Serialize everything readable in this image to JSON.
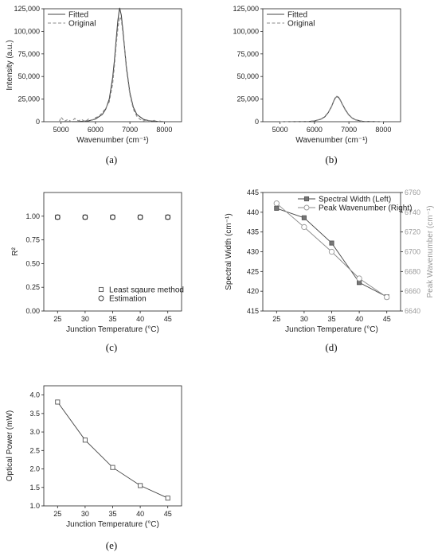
{
  "chart_data": [
    {
      "id": "a",
      "type": "line",
      "panel_label": "(a)",
      "xlabel": "Wavenumber (cm⁻¹)",
      "ylabel": "Intensity (a.u.)",
      "xlim": [
        4500,
        8500
      ],
      "ylim": [
        0,
        125000
      ],
      "xticks": [
        5000,
        6000,
        7000,
        8000
      ],
      "yticks": [
        0,
        25000,
        50000,
        75000,
        100000,
        125000
      ],
      "yticklabels": [
        "0",
        "25,000",
        "50,000",
        "75,000",
        "100,000",
        "125,000"
      ],
      "legend_position": "top-left",
      "series": [
        {
          "name": "Fitted",
          "style": "solid",
          "x": [
            5000,
            5500,
            5800,
            6000,
            6200,
            6300,
            6400,
            6500,
            6550,
            6600,
            6650,
            6700,
            6750,
            6800,
            6850,
            6900,
            7000,
            7100,
            7200,
            7400,
            7600,
            8000
          ],
          "y": [
            0,
            200,
            1000,
            3000,
            8000,
            14000,
            25000,
            49000,
            68000,
            90000,
            112000,
            126000,
            118000,
            100000,
            80000,
            60000,
            32000,
            16000,
            8000,
            2500,
            800,
            0
          ]
        },
        {
          "name": "Original",
          "style": "dashed",
          "x": [
            4950,
            5000,
            5100,
            5200,
            5300,
            5400,
            5500,
            5600,
            5700,
            5800,
            5900,
            6000,
            6100,
            6200,
            6300,
            6400,
            6500,
            6550,
            6600,
            6650,
            6700,
            6750,
            6800,
            6850,
            6900,
            7000,
            7100,
            7200,
            7300,
            7400,
            7500,
            7600,
            7700,
            7800,
            7900,
            8000
          ],
          "y": [
            0,
            5000,
            500,
            2500,
            0,
            3500,
            1000,
            2500,
            0,
            3000,
            1500,
            4500,
            6000,
            10000,
            15000,
            22000,
            42000,
            62000,
            84000,
            103000,
            116000,
            113000,
            96000,
            78000,
            57000,
            30000,
            14000,
            6000,
            2500,
            1000,
            2000,
            0,
            1500,
            0,
            1000,
            0
          ]
        }
      ]
    },
    {
      "id": "b",
      "type": "line",
      "panel_label": "(b)",
      "xlabel": "Wavenumber (cm⁻¹)",
      "ylabel": "",
      "xlim": [
        4500,
        8500
      ],
      "ylim": [
        0,
        125000
      ],
      "xticks": [
        5000,
        6000,
        7000,
        8000
      ],
      "yticks": [
        0,
        25000,
        50000,
        75000,
        100000,
        125000
      ],
      "yticklabels": [
        "0",
        "25,000",
        "50,000",
        "75,000",
        "100,000",
        "125,000"
      ],
      "legend_position": "top-left",
      "series": [
        {
          "name": "Fitted",
          "style": "solid",
          "x": [
            5000,
            5800,
            6000,
            6200,
            6300,
            6400,
            6500,
            6550,
            6600,
            6650,
            6700,
            6750,
            6800,
            6900,
            7000,
            7100,
            7200,
            7400,
            8000
          ],
          "y": [
            0,
            200,
            800,
            3000,
            5500,
            10000,
            17000,
            22000,
            26000,
            28000,
            27000,
            24000,
            20000,
            13000,
            7500,
            4000,
            2000,
            400,
            0
          ]
        },
        {
          "name": "Original",
          "style": "dashed",
          "x": [
            5000,
            5800,
            6000,
            6200,
            6300,
            6400,
            6500,
            6550,
            6600,
            6650,
            6700,
            6750,
            6800,
            6900,
            7000,
            7100,
            7200,
            7400,
            8000
          ],
          "y": [
            0,
            300,
            1000,
            3200,
            6000,
            10500,
            17500,
            22500,
            26500,
            27500,
            26500,
            23500,
            19500,
            12500,
            7000,
            3800,
            1800,
            400,
            0
          ]
        }
      ]
    },
    {
      "id": "c",
      "type": "scatter",
      "panel_label": "(c)",
      "xlabel": "Junction Temperature (°C)",
      "ylabel": "R²",
      "xlim": [
        22.5,
        47.5
      ],
      "ylim": [
        0,
        1.25
      ],
      "xticks": [
        25,
        30,
        35,
        40,
        45
      ],
      "yticks": [
        0,
        0.25,
        0.5,
        0.75,
        1.0
      ],
      "yticklabels": [
        "0.00",
        "0.25",
        "0.50",
        "0.75",
        "1.00"
      ],
      "legend_position": "bottom-right",
      "series": [
        {
          "name": "Least sqaure method",
          "marker": "square",
          "x": [
            25,
            30,
            35,
            40,
            45
          ],
          "y": [
            0.99,
            0.99,
            0.99,
            0.99,
            0.99
          ]
        },
        {
          "name": "Estimation",
          "marker": "circle",
          "x": [
            25,
            30,
            35,
            40,
            45
          ],
          "y": [
            0.99,
            0.99,
            0.99,
            0.99,
            0.99
          ]
        }
      ]
    },
    {
      "id": "d",
      "type": "line",
      "panel_label": "(d)",
      "xlabel": "Junction Temperature (°C)",
      "ylabel": "Spectral Width (cm⁻¹)",
      "ylabel_right": "Peak Wavenumber (cm⁻¹)",
      "xlim": [
        22.5,
        47.5
      ],
      "ylim": [
        415,
        445
      ],
      "ylim_right": [
        6640,
        6760
      ],
      "xticks": [
        25,
        30,
        35,
        40,
        45
      ],
      "yticks": [
        415,
        420,
        425,
        430,
        435,
        440,
        445
      ],
      "yticks_right": [
        6640,
        6660,
        6680,
        6700,
        6720,
        6740,
        6760
      ],
      "legend_position": "top-right",
      "series": [
        {
          "name": "Spectral Width (Left)",
          "marker": "square-filled",
          "axis": "left",
          "x": [
            25,
            30,
            35,
            40,
            45
          ],
          "y": [
            441,
            438.6,
            432.2,
            422.2,
            418.6
          ]
        },
        {
          "name": "Peak Wavenumber (Right)",
          "marker": "circle",
          "axis": "right",
          "x": [
            25,
            30,
            35,
            40,
            45
          ],
          "y": [
            6749,
            6725,
            6700,
            6673,
            6654
          ]
        }
      ]
    },
    {
      "id": "e",
      "type": "line",
      "panel_label": "(e)",
      "xlabel": "Junction Temperature (°C)",
      "ylabel": "Optical Power (mW)",
      "xlim": [
        22.5,
        47.5
      ],
      "ylim": [
        1.0,
        4.25
      ],
      "xticks": [
        25,
        30,
        35,
        40,
        45
      ],
      "yticks": [
        1.0,
        1.5,
        2.0,
        2.5,
        3.0,
        3.5,
        4.0
      ],
      "yticklabels": [
        "1.0",
        "1.5",
        "2.0",
        "2.5",
        "3.0",
        "3.5",
        "4.0"
      ],
      "legend_position": "none",
      "series": [
        {
          "name": "",
          "marker": "square",
          "x": [
            25,
            30,
            35,
            40,
            45
          ],
          "y": [
            3.81,
            2.78,
            2.04,
            1.55,
            1.21
          ]
        }
      ]
    }
  ]
}
